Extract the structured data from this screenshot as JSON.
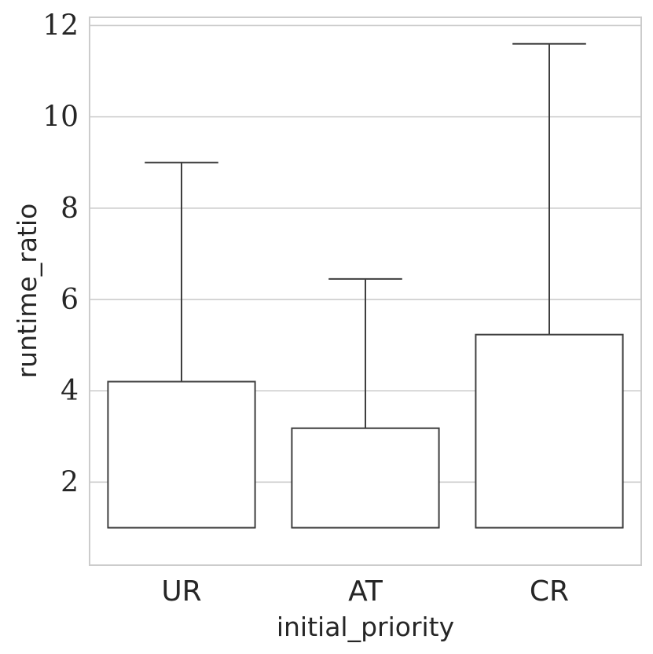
{
  "chart_data": {
    "type": "box",
    "title": "",
    "xlabel": "initial_priority",
    "ylabel": "runtime_ratio",
    "categories": [
      "UR",
      "AT",
      "CR"
    ],
    "boxes": [
      {
        "category": "UR",
        "whisker_low": 1.0,
        "q1": 1.0,
        "median": 1.0,
        "q3": 4.2,
        "whisker_high": 9.0
      },
      {
        "category": "AT",
        "whisker_low": 1.0,
        "q1": 1.0,
        "median": 1.0,
        "q3": 3.18,
        "whisker_high": 6.45
      },
      {
        "category": "CR",
        "whisker_low": 1.0,
        "q1": 1.0,
        "median": 1.0,
        "q3": 5.23,
        "whisker_high": 11.6
      }
    ],
    "ylim": [
      0.18,
      12.18
    ],
    "yticks": [
      "2",
      "4",
      "6",
      "8",
      "10",
      "12"
    ],
    "ytick_values": [
      2,
      4,
      6,
      8,
      10,
      12
    ],
    "grid": true,
    "style": {
      "box_fill": "#ffffff",
      "line_color": "#3f3f3f",
      "grid_color": "#cccccc",
      "frame_color": "#cccccc"
    }
  }
}
